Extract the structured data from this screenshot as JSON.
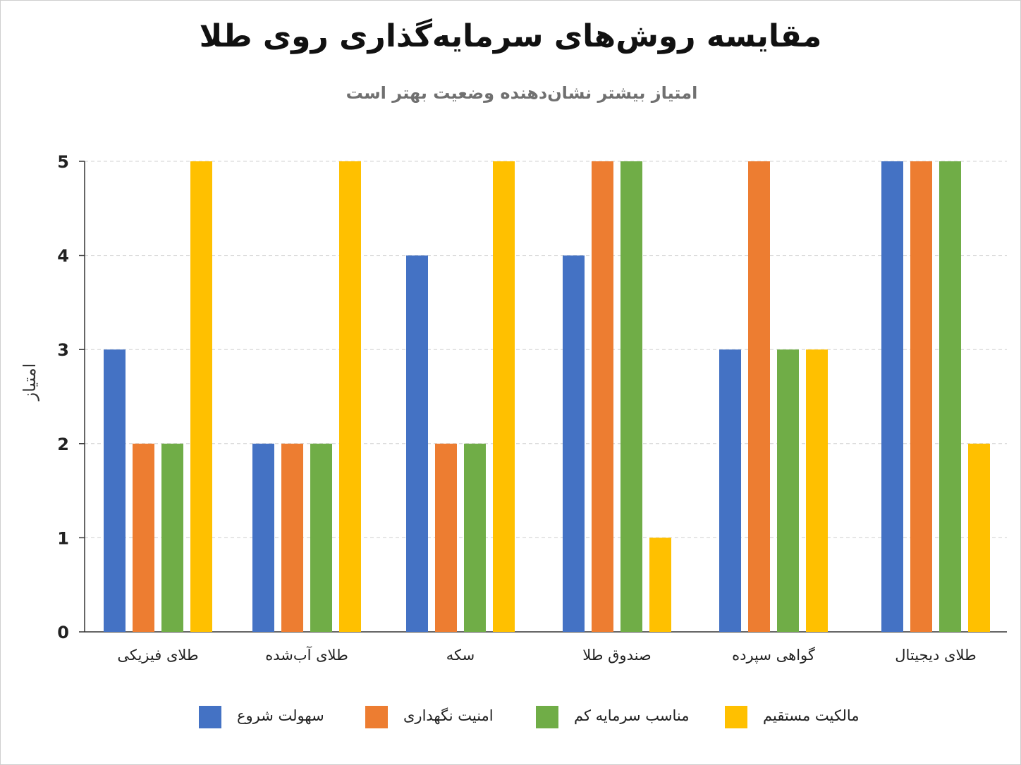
{
  "chart_data": {
    "type": "bar",
    "title": "مقایسه روش‌های سرمایه‌گذاری روی طلا",
    "subtitle": "امتیاز بیشتر نشان‌دهنده وضعیت بهتر است",
    "xlabel": "",
    "ylabel": "امتیاز",
    "ylim": [
      0,
      5
    ],
    "yticks": [
      "0",
      "1",
      "2",
      "3",
      "4",
      "5"
    ],
    "grid": true,
    "legend_position": "bottom",
    "categories": [
      "طلای فیزیکی",
      "طلای آب‌شده",
      "سکه",
      "صندوق طلا",
      "گواهی سپرده",
      "طلای دیجیتال"
    ],
    "series": [
      {
        "name": "سهولت شروع",
        "color": "#4472C4",
        "values": [
          3,
          2,
          4,
          4,
          3,
          5
        ]
      },
      {
        "name": "امنیت نگهداری",
        "color": "#ED7D31",
        "values": [
          2,
          2,
          2,
          5,
          5,
          5
        ]
      },
      {
        "name": "مناسب سرمایه کم",
        "color": "#70AD47",
        "values": [
          2,
          2,
          2,
          5,
          3,
          5
        ]
      },
      {
        "name": "مالکیت مستقیم",
        "color": "#FFC000",
        "values": [
          5,
          5,
          5,
          1,
          3,
          2
        ]
      }
    ]
  }
}
